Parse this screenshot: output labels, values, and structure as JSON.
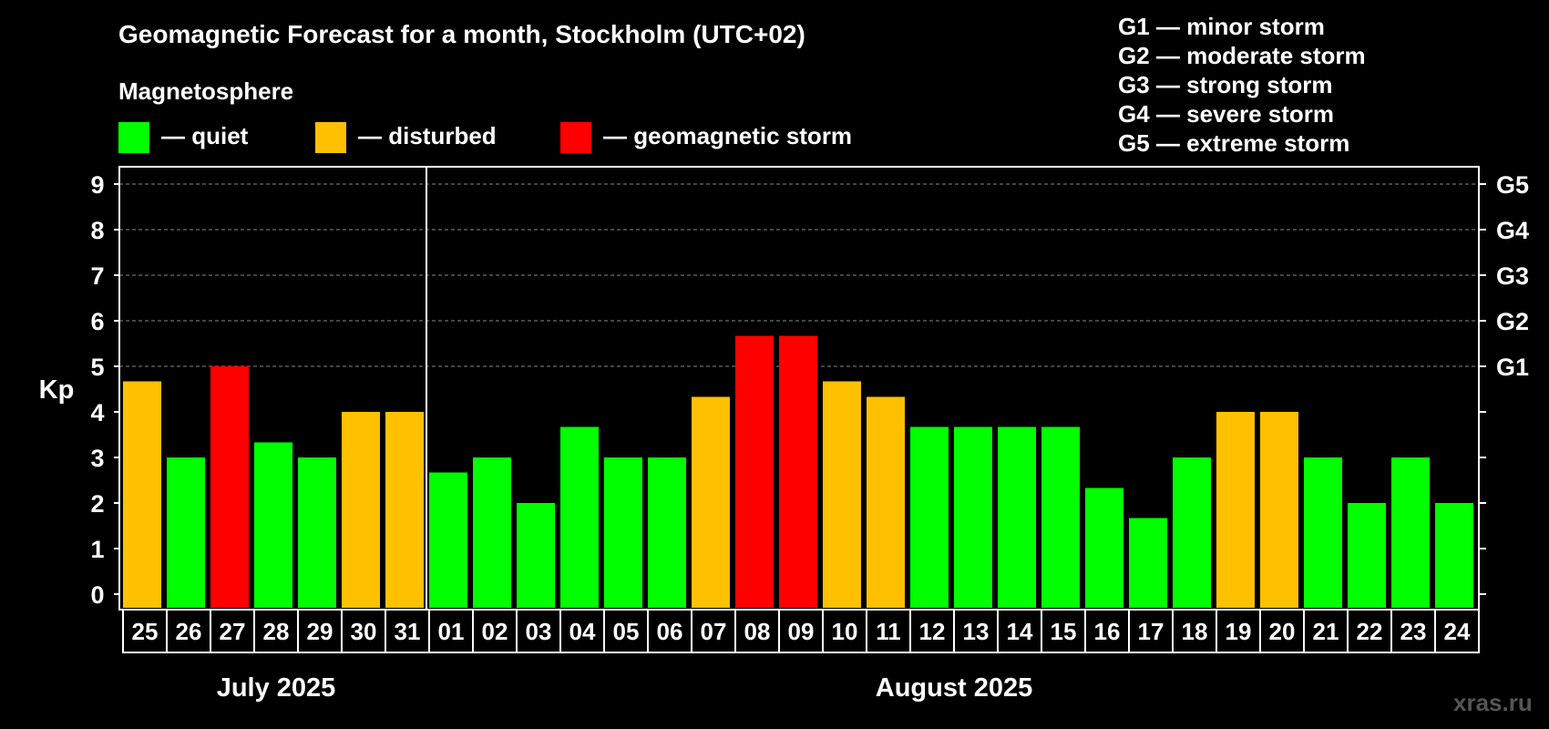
{
  "chart_data": {
    "type": "bar",
    "title": "Geomagnetic Forecast for a month, Stockholm (UTC+02)",
    "subtitle": "Magnetosphere",
    "ylabel": "Kp",
    "ylim": [
      0,
      9
    ],
    "yticks": [
      "0",
      "1",
      "2",
      "3",
      "4",
      "5",
      "6",
      "7",
      "8",
      "9"
    ],
    "right_axis_labels": [
      {
        "kp": 5,
        "label": "G1"
      },
      {
        "kp": 6,
        "label": "G2"
      },
      {
        "kp": 7,
        "label": "G3"
      },
      {
        "kp": 8,
        "label": "G4"
      },
      {
        "kp": 9,
        "label": "G5"
      }
    ],
    "categories": [
      "25",
      "26",
      "27",
      "28",
      "29",
      "30",
      "31",
      "01",
      "02",
      "03",
      "04",
      "05",
      "06",
      "07",
      "08",
      "09",
      "10",
      "11",
      "12",
      "13",
      "14",
      "15",
      "16",
      "17",
      "18",
      "19",
      "20",
      "21",
      "22",
      "23",
      "24"
    ],
    "values": [
      4.67,
      3,
      5,
      3.33,
      3,
      4,
      4,
      2.67,
      3,
      2,
      3.67,
      3,
      3,
      4.33,
      5.67,
      5.67,
      4.67,
      4.33,
      3.67,
      3.67,
      3.67,
      3.67,
      2.33,
      1.67,
      3,
      4,
      4,
      3,
      2,
      3,
      2
    ],
    "status": [
      "disturbed",
      "quiet",
      "storm",
      "quiet",
      "quiet",
      "disturbed",
      "disturbed",
      "quiet",
      "quiet",
      "quiet",
      "quiet",
      "quiet",
      "quiet",
      "disturbed",
      "storm",
      "storm",
      "disturbed",
      "disturbed",
      "quiet",
      "quiet",
      "quiet",
      "quiet",
      "quiet",
      "quiet",
      "quiet",
      "disturbed",
      "disturbed",
      "quiet",
      "quiet",
      "quiet",
      "quiet"
    ],
    "months": [
      {
        "label": "July 2025",
        "from": 0,
        "to": 6
      },
      {
        "label": "August 2025",
        "from": 7,
        "to": 30
      }
    ],
    "grid": true
  },
  "legend": {
    "quiet": "— quiet",
    "disturbed": "— disturbed",
    "storm": "— geomagnetic storm"
  },
  "storm_scale": [
    "G1 — minor storm",
    "G2 — moderate storm",
    "G3 — strong storm",
    "G4 — severe storm",
    "G5 — extreme storm"
  ],
  "colors": {
    "quiet": "#00ff00",
    "disturbed": "#ffc000",
    "storm": "#ff0000",
    "background": "#000000",
    "axis": "#ffffff"
  },
  "watermark": "xras.ru"
}
